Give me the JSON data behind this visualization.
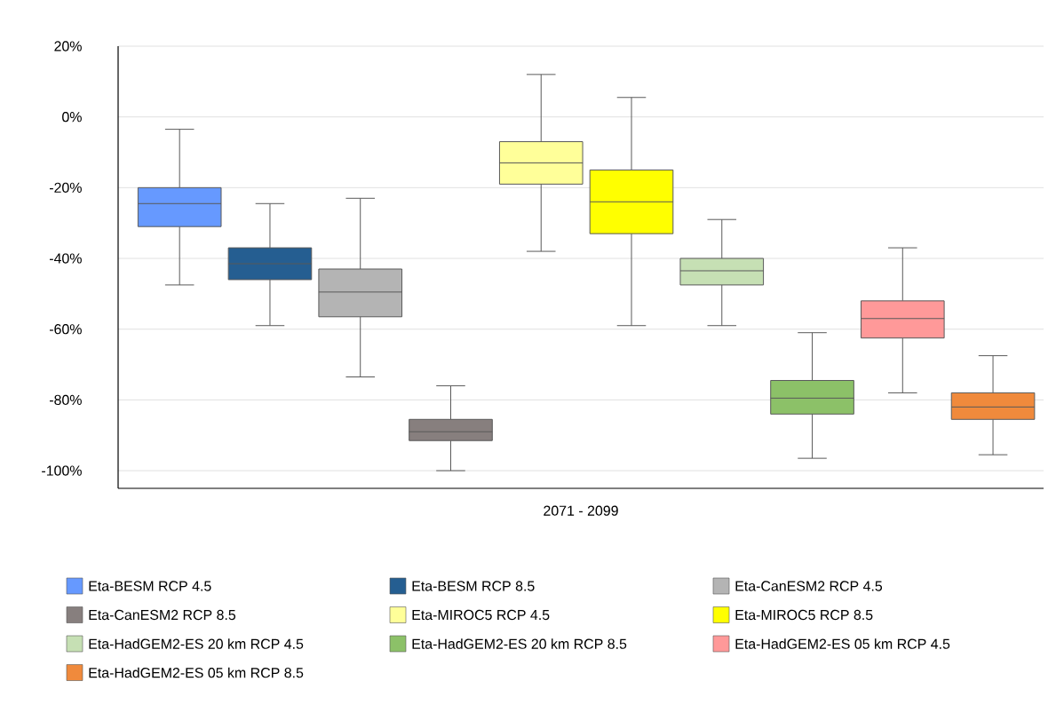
{
  "chart_data": {
    "type": "box",
    "categories": [
      "2071 - 2099"
    ],
    "series": [
      {
        "name": "Eta-BESM RCP 4.5",
        "color": "#6699ff",
        "boxes": [
          {
            "low": -47.5,
            "q1": -31,
            "median": -24.5,
            "q3": -20,
            "high": -3.5
          }
        ]
      },
      {
        "name": "Eta-BESM RCP 8.5",
        "color": "#255e91",
        "boxes": [
          {
            "low": -59,
            "q1": -46,
            "median": -41.5,
            "q3": -37,
            "high": -24.5
          }
        ]
      },
      {
        "name": "Eta-CanESM2 RCP 4.5",
        "color": "#b4b4b4",
        "boxes": [
          {
            "low": -73.5,
            "q1": -56.5,
            "median": -49.5,
            "q3": -43,
            "high": -23
          }
        ]
      },
      {
        "name": "Eta-CanESM2 RCP 8.5",
        "color": "#877f7e",
        "boxes": [
          {
            "low": -100,
            "q1": -91.5,
            "median": -89,
            "q3": -85.5,
            "high": -76
          }
        ]
      },
      {
        "name": "Eta-MIROC5 RCP 4.5",
        "color": "#ffff99",
        "boxes": [
          {
            "low": -38,
            "q1": -19,
            "median": -13,
            "q3": -7,
            "high": 12
          }
        ]
      },
      {
        "name": "Eta-MIROC5 RCP 8.5",
        "color": "#ffff00",
        "boxes": [
          {
            "low": -59,
            "q1": -33,
            "median": -24,
            "q3": -15,
            "high": 5.5
          }
        ]
      },
      {
        "name": "Eta-HadGEM2-ES 20 km RCP 4.5",
        "color": "#c6e0b4",
        "boxes": [
          {
            "low": -59,
            "q1": -47.5,
            "median": -43.5,
            "q3": -40,
            "high": -29
          }
        ]
      },
      {
        "name": "Eta-HadGEM2-ES 20 km RCP 8.5",
        "color": "#8cc168",
        "boxes": [
          {
            "low": -96.5,
            "q1": -84,
            "median": -79.5,
            "q3": -74.5,
            "high": -61
          }
        ]
      },
      {
        "name": "Eta-HadGEM2-ES 05 km RCP 4.5",
        "color": "#ff9999",
        "boxes": [
          {
            "low": -78,
            "q1": -62.5,
            "median": -57,
            "q3": -52,
            "high": -37
          }
        ]
      },
      {
        "name": "Eta-HadGEM2-ES 05 km RCP 8.5",
        "color": "#f08a3c",
        "boxes": [
          {
            "low": -95.5,
            "q1": -85.5,
            "median": -82,
            "q3": -78,
            "high": -67.5
          }
        ]
      }
    ],
    "ylim": [
      -105,
      20
    ],
    "yticks": [
      {
        "value": -100,
        "label": "-100%"
      },
      {
        "value": -80,
        "label": "-80%"
      },
      {
        "value": -60,
        "label": "-60%"
      },
      {
        "value": -40,
        "label": "-40%"
      },
      {
        "value": -20,
        "label": "-20%"
      },
      {
        "value": 0,
        "label": "0%"
      },
      {
        "value": 20,
        "label": "20%"
      }
    ],
    "grid": "y",
    "legend": "bottom"
  }
}
